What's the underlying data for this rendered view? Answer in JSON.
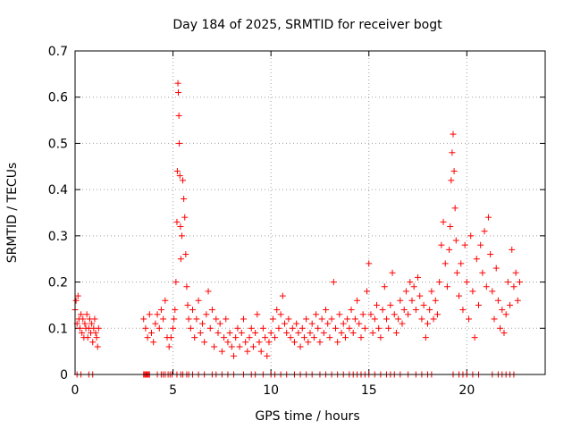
{
  "chart_data": {
    "type": "scatter",
    "title": "Day 184 of 2025, SRMTID for receiver bogt",
    "xlabel": "GPS time / hours",
    "ylabel": "SRMTID / TECUs",
    "xlim": [
      0,
      24
    ],
    "ylim": [
      0,
      0.7
    ],
    "grid": true,
    "marker": "+",
    "series_color": "#ff0000",
    "x_ticks": [
      {
        "value": 0,
        "label": "0"
      },
      {
        "value": 5,
        "label": "5"
      },
      {
        "value": 10,
        "label": "10"
      },
      {
        "value": 15,
        "label": "15"
      },
      {
        "value": 20,
        "label": "20"
      }
    ],
    "y_ticks": [
      {
        "value": 0,
        "label": "0"
      },
      {
        "value": 0.1,
        "label": "0.1"
      },
      {
        "value": 0.2,
        "label": "0.2"
      },
      {
        "value": 0.3,
        "label": "0.3"
      },
      {
        "value": 0.4,
        "label": "0.4"
      },
      {
        "value": 0.5,
        "label": "0.5"
      },
      {
        "value": 0.6,
        "label": "0.6"
      },
      {
        "value": 0.7,
        "label": "0.7"
      }
    ],
    "series": [
      {
        "name": "SRMTID",
        "points": [
          [
            0.0,
            0.14
          ],
          [
            0.05,
            0.16
          ],
          [
            0.1,
            0.11
          ],
          [
            0.15,
            0.17
          ],
          [
            0.2,
            0.12
          ],
          [
            0.25,
            0.1
          ],
          [
            0.3,
            0.13
          ],
          [
            0.35,
            0.09
          ],
          [
            0.4,
            0.12
          ],
          [
            0.45,
            0.08
          ],
          [
            0.5,
            0.11
          ],
          [
            0.55,
            0.1
          ],
          [
            0.6,
            0.13
          ],
          [
            0.65,
            0.08
          ],
          [
            0.7,
            0.1
          ],
          [
            0.75,
            0.12
          ],
          [
            0.8,
            0.09
          ],
          [
            0.85,
            0.11
          ],
          [
            0.9,
            0.07
          ],
          [
            0.95,
            0.1
          ],
          [
            1.0,
            0.12
          ],
          [
            1.05,
            0.09
          ],
          [
            1.1,
            0.08
          ],
          [
            1.15,
            0.06
          ],
          [
            1.2,
            0.1
          ],
          [
            3.5,
            0.12
          ],
          [
            3.6,
            0.1
          ],
          [
            3.7,
            0.08
          ],
          [
            3.8,
            0.13
          ],
          [
            3.9,
            0.09
          ],
          [
            4.0,
            0.07
          ],
          [
            4.1,
            0.11
          ],
          [
            4.2,
            0.13
          ],
          [
            4.3,
            0.1
          ],
          [
            4.4,
            0.14
          ],
          [
            4.5,
            0.12
          ],
          [
            4.6,
            0.16
          ],
          [
            4.7,
            0.08
          ],
          [
            4.8,
            0.06
          ],
          [
            4.9,
            0.08
          ],
          [
            5.0,
            0.1
          ],
          [
            5.05,
            0.12
          ],
          [
            5.1,
            0.14
          ],
          [
            5.15,
            0.2
          ],
          [
            5.2,
            0.33
          ],
          [
            5.22,
            0.44
          ],
          [
            5.25,
            0.63
          ],
          [
            5.27,
            0.61
          ],
          [
            5.3,
            0.56
          ],
          [
            5.32,
            0.5
          ],
          [
            5.35,
            0.43
          ],
          [
            5.38,
            0.32
          ],
          [
            5.4,
            0.25
          ],
          [
            5.45,
            0.3
          ],
          [
            5.5,
            0.42
          ],
          [
            5.55,
            0.38
          ],
          [
            5.6,
            0.34
          ],
          [
            5.65,
            0.26
          ],
          [
            5.7,
            0.19
          ],
          [
            5.75,
            0.15
          ],
          [
            5.8,
            0.12
          ],
          [
            5.9,
            0.1
          ],
          [
            6.0,
            0.14
          ],
          [
            6.1,
            0.08
          ],
          [
            6.2,
            0.12
          ],
          [
            6.3,
            0.16
          ],
          [
            6.4,
            0.09
          ],
          [
            6.5,
            0.11
          ],
          [
            6.6,
            0.07
          ],
          [
            6.7,
            0.13
          ],
          [
            6.8,
            0.18
          ],
          [
            6.9,
            0.1
          ],
          [
            7.0,
            0.14
          ],
          [
            7.1,
            0.06
          ],
          [
            7.2,
            0.12
          ],
          [
            7.3,
            0.09
          ],
          [
            7.4,
            0.11
          ],
          [
            7.5,
            0.05
          ],
          [
            7.6,
            0.08
          ],
          [
            7.7,
            0.12
          ],
          [
            7.8,
            0.07
          ],
          [
            7.9,
            0.09
          ],
          [
            8.0,
            0.06
          ],
          [
            8.1,
            0.04
          ],
          [
            8.2,
            0.08
          ],
          [
            8.3,
            0.1
          ],
          [
            8.4,
            0.06
          ],
          [
            8.5,
            0.09
          ],
          [
            8.6,
            0.12
          ],
          [
            8.7,
            0.07
          ],
          [
            8.8,
            0.05
          ],
          [
            8.9,
            0.08
          ],
          [
            9.0,
            0.1
          ],
          [
            9.1,
            0.06
          ],
          [
            9.2,
            0.09
          ],
          [
            9.3,
            0.13
          ],
          [
            9.4,
            0.07
          ],
          [
            9.5,
            0.05
          ],
          [
            9.6,
            0.1
          ],
          [
            9.7,
            0.08
          ],
          [
            9.8,
            0.04
          ],
          [
            9.9,
            0.07
          ],
          [
            10.0,
            0.09
          ],
          [
            10.1,
            0.12
          ],
          [
            10.2,
            0.08
          ],
          [
            10.3,
            0.14
          ],
          [
            10.4,
            0.1
          ],
          [
            10.5,
            0.13
          ],
          [
            10.6,
            0.17
          ],
          [
            10.7,
            0.11
          ],
          [
            10.8,
            0.09
          ],
          [
            10.9,
            0.12
          ],
          [
            11.0,
            0.08
          ],
          [
            11.1,
            0.1
          ],
          [
            11.2,
            0.07
          ],
          [
            11.3,
            0.11
          ],
          [
            11.4,
            0.09
          ],
          [
            11.5,
            0.06
          ],
          [
            11.6,
            0.1
          ],
          [
            11.7,
            0.08
          ],
          [
            11.8,
            0.12
          ],
          [
            11.9,
            0.07
          ],
          [
            12.0,
            0.09
          ],
          [
            12.1,
            0.11
          ],
          [
            12.2,
            0.08
          ],
          [
            12.3,
            0.13
          ],
          [
            12.4,
            0.1
          ],
          [
            12.5,
            0.07
          ],
          [
            12.6,
            0.12
          ],
          [
            12.7,
            0.09
          ],
          [
            12.8,
            0.14
          ],
          [
            12.9,
            0.11
          ],
          [
            13.0,
            0.08
          ],
          [
            13.1,
            0.12
          ],
          [
            13.2,
            0.2
          ],
          [
            13.3,
            0.1
          ],
          [
            13.4,
            0.07
          ],
          [
            13.5,
            0.13
          ],
          [
            13.6,
            0.09
          ],
          [
            13.7,
            0.11
          ],
          [
            13.8,
            0.08
          ],
          [
            13.9,
            0.12
          ],
          [
            14.0,
            0.1
          ],
          [
            14.1,
            0.14
          ],
          [
            14.2,
            0.09
          ],
          [
            14.3,
            0.12
          ],
          [
            14.4,
            0.16
          ],
          [
            14.5,
            0.11
          ],
          [
            14.6,
            0.08
          ],
          [
            14.7,
            0.13
          ],
          [
            14.8,
            0.1
          ],
          [
            14.9,
            0.18
          ],
          [
            15.0,
            0.24
          ],
          [
            15.1,
            0.13
          ],
          [
            15.2,
            0.09
          ],
          [
            15.3,
            0.12
          ],
          [
            15.4,
            0.15
          ],
          [
            15.5,
            0.1
          ],
          [
            15.6,
            0.08
          ],
          [
            15.7,
            0.14
          ],
          [
            15.8,
            0.19
          ],
          [
            15.9,
            0.12
          ],
          [
            16.0,
            0.1
          ],
          [
            16.1,
            0.15
          ],
          [
            16.2,
            0.22
          ],
          [
            16.3,
            0.13
          ],
          [
            16.4,
            0.09
          ],
          [
            16.5,
            0.12
          ],
          [
            16.6,
            0.16
          ],
          [
            16.7,
            0.11
          ],
          [
            16.8,
            0.14
          ],
          [
            16.9,
            0.18
          ],
          [
            17.0,
            0.13
          ],
          [
            17.1,
            0.2
          ],
          [
            17.2,
            0.16
          ],
          [
            17.3,
            0.19
          ],
          [
            17.4,
            0.14
          ],
          [
            17.5,
            0.21
          ],
          [
            17.6,
            0.17
          ],
          [
            17.7,
            0.12
          ],
          [
            17.8,
            0.15
          ],
          [
            17.9,
            0.08
          ],
          [
            18.0,
            0.11
          ],
          [
            18.1,
            0.14
          ],
          [
            18.2,
            0.18
          ],
          [
            18.3,
            0.12
          ],
          [
            18.4,
            0.16
          ],
          [
            18.5,
            0.13
          ],
          [
            18.6,
            0.2
          ],
          [
            18.7,
            0.28
          ],
          [
            18.8,
            0.33
          ],
          [
            18.9,
            0.24
          ],
          [
            19.0,
            0.19
          ],
          [
            19.1,
            0.27
          ],
          [
            19.15,
            0.32
          ],
          [
            19.2,
            0.42
          ],
          [
            19.25,
            0.48
          ],
          [
            19.3,
            0.52
          ],
          [
            19.35,
            0.44
          ],
          [
            19.4,
            0.36
          ],
          [
            19.45,
            0.29
          ],
          [
            19.5,
            0.22
          ],
          [
            19.6,
            0.17
          ],
          [
            19.7,
            0.24
          ],
          [
            19.8,
            0.14
          ],
          [
            19.9,
            0.28
          ],
          [
            20.0,
            0.2
          ],
          [
            20.1,
            0.12
          ],
          [
            20.2,
            0.3
          ],
          [
            20.3,
            0.18
          ],
          [
            20.4,
            0.08
          ],
          [
            20.5,
            0.25
          ],
          [
            20.6,
            0.15
          ],
          [
            20.7,
            0.28
          ],
          [
            20.8,
            0.22
          ],
          [
            20.9,
            0.31
          ],
          [
            21.0,
            0.19
          ],
          [
            21.1,
            0.34
          ],
          [
            21.2,
            0.26
          ],
          [
            21.3,
            0.18
          ],
          [
            21.4,
            0.12
          ],
          [
            21.5,
            0.23
          ],
          [
            21.6,
            0.16
          ],
          [
            21.7,
            0.1
          ],
          [
            21.8,
            0.14
          ],
          [
            21.9,
            0.09
          ],
          [
            22.0,
            0.13
          ],
          [
            22.1,
            0.2
          ],
          [
            22.2,
            0.15
          ],
          [
            22.3,
            0.27
          ],
          [
            22.4,
            0.19
          ],
          [
            22.5,
            0.22
          ],
          [
            22.6,
            0.16
          ],
          [
            22.7,
            0.2
          ],
          [
            0.1,
            0.0
          ],
          [
            0.3,
            0.0
          ],
          [
            0.7,
            0.0
          ],
          [
            0.9,
            0.0
          ],
          [
            3.5,
            0.0
          ],
          [
            3.55,
            0.0
          ],
          [
            3.6,
            0.0
          ],
          [
            3.65,
            0.0
          ],
          [
            3.7,
            0.0
          ],
          [
            3.75,
            0.0
          ],
          [
            3.8,
            0.0
          ],
          [
            4.2,
            0.0
          ],
          [
            4.4,
            0.0
          ],
          [
            4.5,
            0.0
          ],
          [
            4.6,
            0.0
          ],
          [
            4.75,
            0.0
          ],
          [
            4.85,
            0.0
          ],
          [
            4.95,
            0.0
          ],
          [
            5.2,
            0.0
          ],
          [
            5.4,
            0.0
          ],
          [
            5.5,
            0.0
          ],
          [
            5.7,
            0.0
          ],
          [
            5.8,
            0.0
          ],
          [
            6.0,
            0.0
          ],
          [
            6.3,
            0.0
          ],
          [
            6.6,
            0.0
          ],
          [
            7.0,
            0.0
          ],
          [
            7.2,
            0.0
          ],
          [
            7.5,
            0.0
          ],
          [
            7.8,
            0.0
          ],
          [
            8.1,
            0.0
          ],
          [
            8.6,
            0.0
          ],
          [
            9.0,
            0.0
          ],
          [
            9.2,
            0.0
          ],
          [
            9.6,
            0.0
          ],
          [
            10.0,
            0.0
          ],
          [
            10.2,
            0.0
          ],
          [
            10.5,
            0.0
          ],
          [
            10.8,
            0.0
          ],
          [
            11.2,
            0.0
          ],
          [
            11.5,
            0.0
          ],
          [
            11.8,
            0.0
          ],
          [
            12.1,
            0.0
          ],
          [
            12.5,
            0.0
          ],
          [
            12.8,
            0.0
          ],
          [
            13.1,
            0.0
          ],
          [
            13.4,
            0.0
          ],
          [
            13.7,
            0.0
          ],
          [
            14.0,
            0.0
          ],
          [
            14.2,
            0.0
          ],
          [
            14.4,
            0.0
          ],
          [
            14.6,
            0.0
          ],
          [
            14.8,
            0.0
          ],
          [
            15.0,
            0.0
          ],
          [
            15.3,
            0.0
          ],
          [
            15.6,
            0.0
          ],
          [
            15.9,
            0.0
          ],
          [
            16.1,
            0.0
          ],
          [
            16.3,
            0.0
          ],
          [
            16.6,
            0.0
          ],
          [
            17.0,
            0.0
          ],
          [
            17.4,
            0.0
          ],
          [
            17.7,
            0.0
          ],
          [
            18.0,
            0.0
          ],
          [
            18.2,
            0.0
          ],
          [
            19.3,
            0.0
          ],
          [
            19.6,
            0.0
          ],
          [
            19.8,
            0.0
          ],
          [
            20.0,
            0.0
          ],
          [
            20.3,
            0.0
          ],
          [
            20.6,
            0.0
          ],
          [
            21.3,
            0.0
          ],
          [
            21.6,
            0.0
          ],
          [
            21.8,
            0.0
          ],
          [
            22.0,
            0.0
          ],
          [
            22.2,
            0.0
          ],
          [
            22.4,
            0.0
          ]
        ]
      }
    ]
  }
}
